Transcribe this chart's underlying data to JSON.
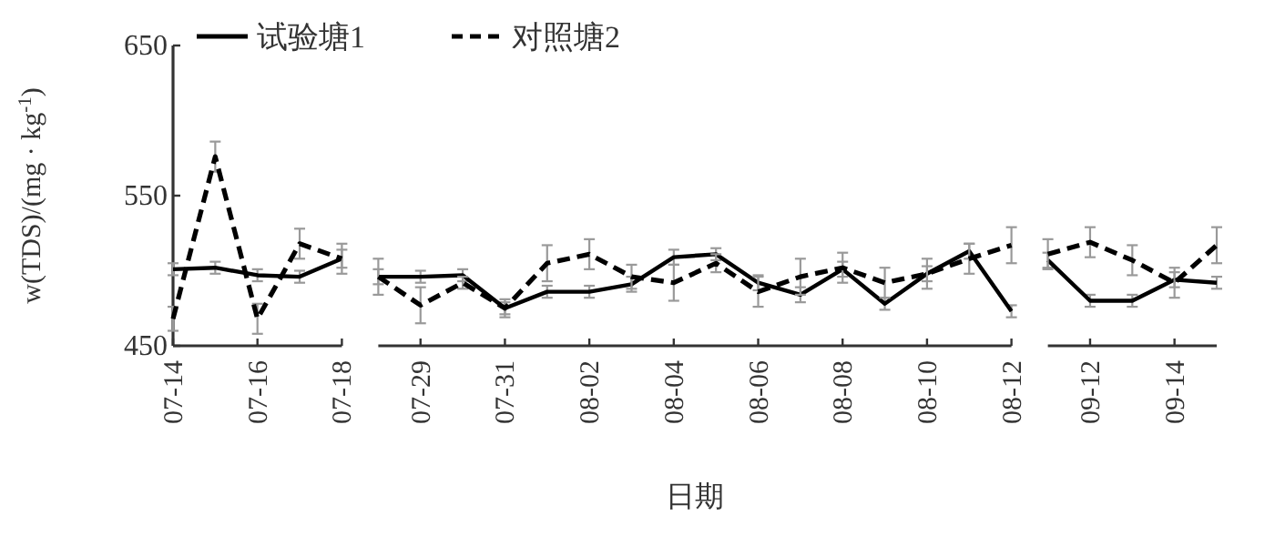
{
  "chart_data": [
    {
      "type": "line",
      "ylabel": "w(TDS)/(mg · kg$^{-1}$)",
      "ylim": [
        450,
        650
      ],
      "yticks": [
        450,
        550,
        650
      ],
      "xlim": [
        "--07-14",
        "--07-18"
      ],
      "xticks": [
        {
          "value": "--07-14",
          "label": "07-14"
        },
        {
          "value": "--07-16",
          "label": "07-16"
        },
        {
          "value": "--07-18",
          "label": "07-18"
        }
      ],
      "legend": "top",
      "grid": false,
      "marker": "none",
      "x": [
        "--07-14",
        "--07-15",
        "--07-16",
        "--07-17",
        "--07-18"
      ],
      "series": [
        {
          "name": "试验塘1",
          "color": "#000000",
          "line_style": "solid",
          "values": [
            501,
            502,
            497,
            496,
            508
          ],
          "errors": [
            4,
            4,
            4,
            4,
            6
          ]
        },
        {
          "name": "对照塘2",
          "color": "#000000",
          "line_style": "dashed",
          "values": [
            468,
            576,
            468,
            518,
            508
          ],
          "errors": [
            8,
            10,
            10,
            10,
            10
          ]
        }
      ]
    },
    {
      "type": "line",
      "xlabel": "日期",
      "ylim": [
        450,
        650
      ],
      "tick_labels": "x",
      "xlim": [
        "--07-28",
        "--08-12"
      ],
      "xticks": [
        {
          "value": "--07-29",
          "label": "07-29"
        },
        {
          "value": "--07-31",
          "label": "07-31"
        },
        {
          "value": "--08-02",
          "label": "08-02"
        },
        {
          "value": "--08-04",
          "label": "08-04"
        },
        {
          "value": "--08-06",
          "label": "08-06"
        },
        {
          "value": "--08-08",
          "label": "08-08"
        },
        {
          "value": "--08-10",
          "label": "08-10"
        },
        {
          "value": "--08-12",
          "label": "08-12"
        }
      ],
      "grid": false,
      "marker": "none",
      "x": [
        "--07-28",
        "--07-29",
        "--07-30",
        "--07-31",
        "--08-01",
        "--08-02",
        "--08-03",
        "--08-04",
        "--08-05",
        "--08-06",
        "--08-07",
        "--08-08",
        "--08-09",
        "--08-10",
        "--08-11",
        "--08-12"
      ],
      "series": [
        {
          "color": "#000000",
          "line_style": "solid",
          "values": [
            496,
            496,
            497,
            475,
            486,
            486,
            491,
            509,
            511,
            492,
            484,
            501,
            478,
            498,
            513,
            473
          ],
          "errors": [
            5,
            4,
            4,
            4,
            4,
            4,
            5,
            5,
            4,
            5,
            5,
            5,
            4,
            5,
            5,
            4
          ]
        },
        {
          "color": "#000000",
          "line_style": "dashed",
          "values": [
            496,
            477,
            492,
            475,
            505,
            511,
            496,
            492,
            505,
            486,
            496,
            502,
            492,
            498,
            508,
            517
          ],
          "errors": [
            12,
            12,
            4,
            6,
            12,
            10,
            8,
            12,
            6,
            10,
            12,
            10,
            10,
            10,
            10,
            12
          ]
        }
      ]
    },
    {
      "type": "line",
      "ylim": [
        450,
        650
      ],
      "tick_labels": "x",
      "xlim": [
        "--09-11",
        "--09-15"
      ],
      "xticks": [
        {
          "value": "--09-12",
          "label": "09-12"
        },
        {
          "value": "--09-14",
          "label": "09-14"
        }
      ],
      "grid": false,
      "marker": "none",
      "x": [
        "--09-11",
        "--09-12",
        "--09-13",
        "--09-14",
        "--09-15"
      ],
      "series": [
        {
          "color": "#000000",
          "line_style": "solid",
          "values": [
            507,
            480,
            480,
            494,
            492
          ],
          "errors": [
            5,
            4,
            4,
            5,
            4
          ]
        },
        {
          "color": "#000000",
          "line_style": "dashed",
          "values": [
            511,
            519,
            507,
            492,
            517
          ],
          "errors": [
            10,
            10,
            10,
            10,
            12
          ]
        }
      ]
    }
  ]
}
